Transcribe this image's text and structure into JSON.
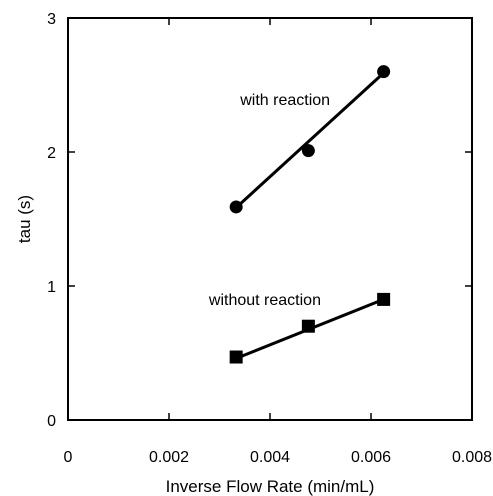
{
  "chart_data": {
    "type": "scatter",
    "title": "",
    "xlabel": "Inverse Flow Rate (min/mL)",
    "ylabel": "tau (s)",
    "xlim": [
      0,
      0.008
    ],
    "ylim": [
      0,
      3
    ],
    "x_ticks": [
      0,
      0.002,
      0.004,
      0.006,
      0.008
    ],
    "x_tick_labels": [
      "0",
      "0.002",
      "0.004",
      "0.006",
      "0.008"
    ],
    "y_ticks": [
      0,
      1,
      2,
      3
    ],
    "y_tick_labels": [
      "0",
      "1",
      "2",
      "3"
    ],
    "grid": false,
    "legend": "none",
    "series": [
      {
        "label": "with reaction",
        "marker": "circle",
        "x": [
          0.00333,
          0.00476,
          0.00625
        ],
        "y": [
          1.59,
          2.01,
          2.6
        ],
        "fit": [
          [
            0.00333,
            1.585
          ],
          [
            0.00625,
            2.59
          ]
        ],
        "label_x": 0.0043,
        "label_y": 2.35
      },
      {
        "label": "without reaction",
        "marker": "square",
        "x": [
          0.00333,
          0.00476,
          0.00625
        ],
        "y": [
          0.47,
          0.7,
          0.9
        ],
        "fit": [
          [
            0.00333,
            0.46
          ],
          [
            0.00625,
            0.9
          ]
        ],
        "label_x": 0.0039,
        "label_y": 0.86
      }
    ],
    "colors": {
      "line": "#000000",
      "marker": "#000000"
    }
  }
}
